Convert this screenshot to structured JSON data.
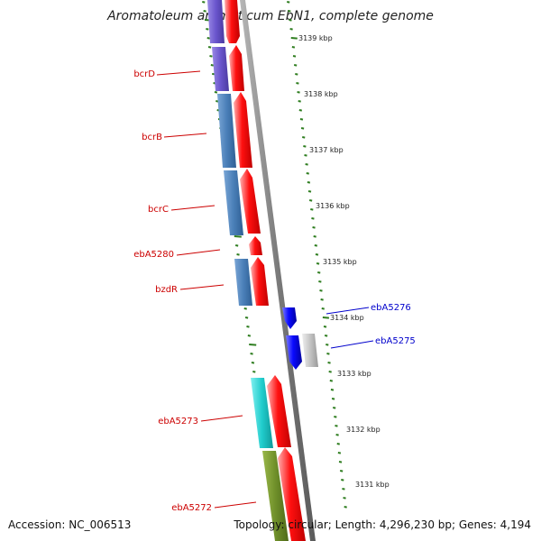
{
  "title": "Aromatoleum aromaticum EbN1, complete genome",
  "accession": "Accession: NC_006513",
  "topology": "Topology: circular; Length: 4,296,230 bp; Genes: 4,194",
  "colors": {
    "backbone": "#8c8c8c",
    "forward_gene": "#ff0000",
    "reverse_gene": "#0000ff",
    "other_gene": "#c0c0c0",
    "tick": "#2e7d1f",
    "label_forward": "#cc0000",
    "label_reverse": "#0000cc"
  },
  "scale_labels": [
    "3139 kbp",
    "3138 kbp",
    "3137 kbp",
    "3136 kbp",
    "3135 kbp",
    "3134 kbp",
    "3133 kbp",
    "3132 kbp",
    "3131 kbp"
  ],
  "gene_labels_left": [
    "bcrD",
    "bcrB",
    "bcrC",
    "ebA5280",
    "bzdR",
    "ebA5273",
    "ebA5272"
  ],
  "gene_labels_right": [
    "ebA5276",
    "ebA5275"
  ]
}
